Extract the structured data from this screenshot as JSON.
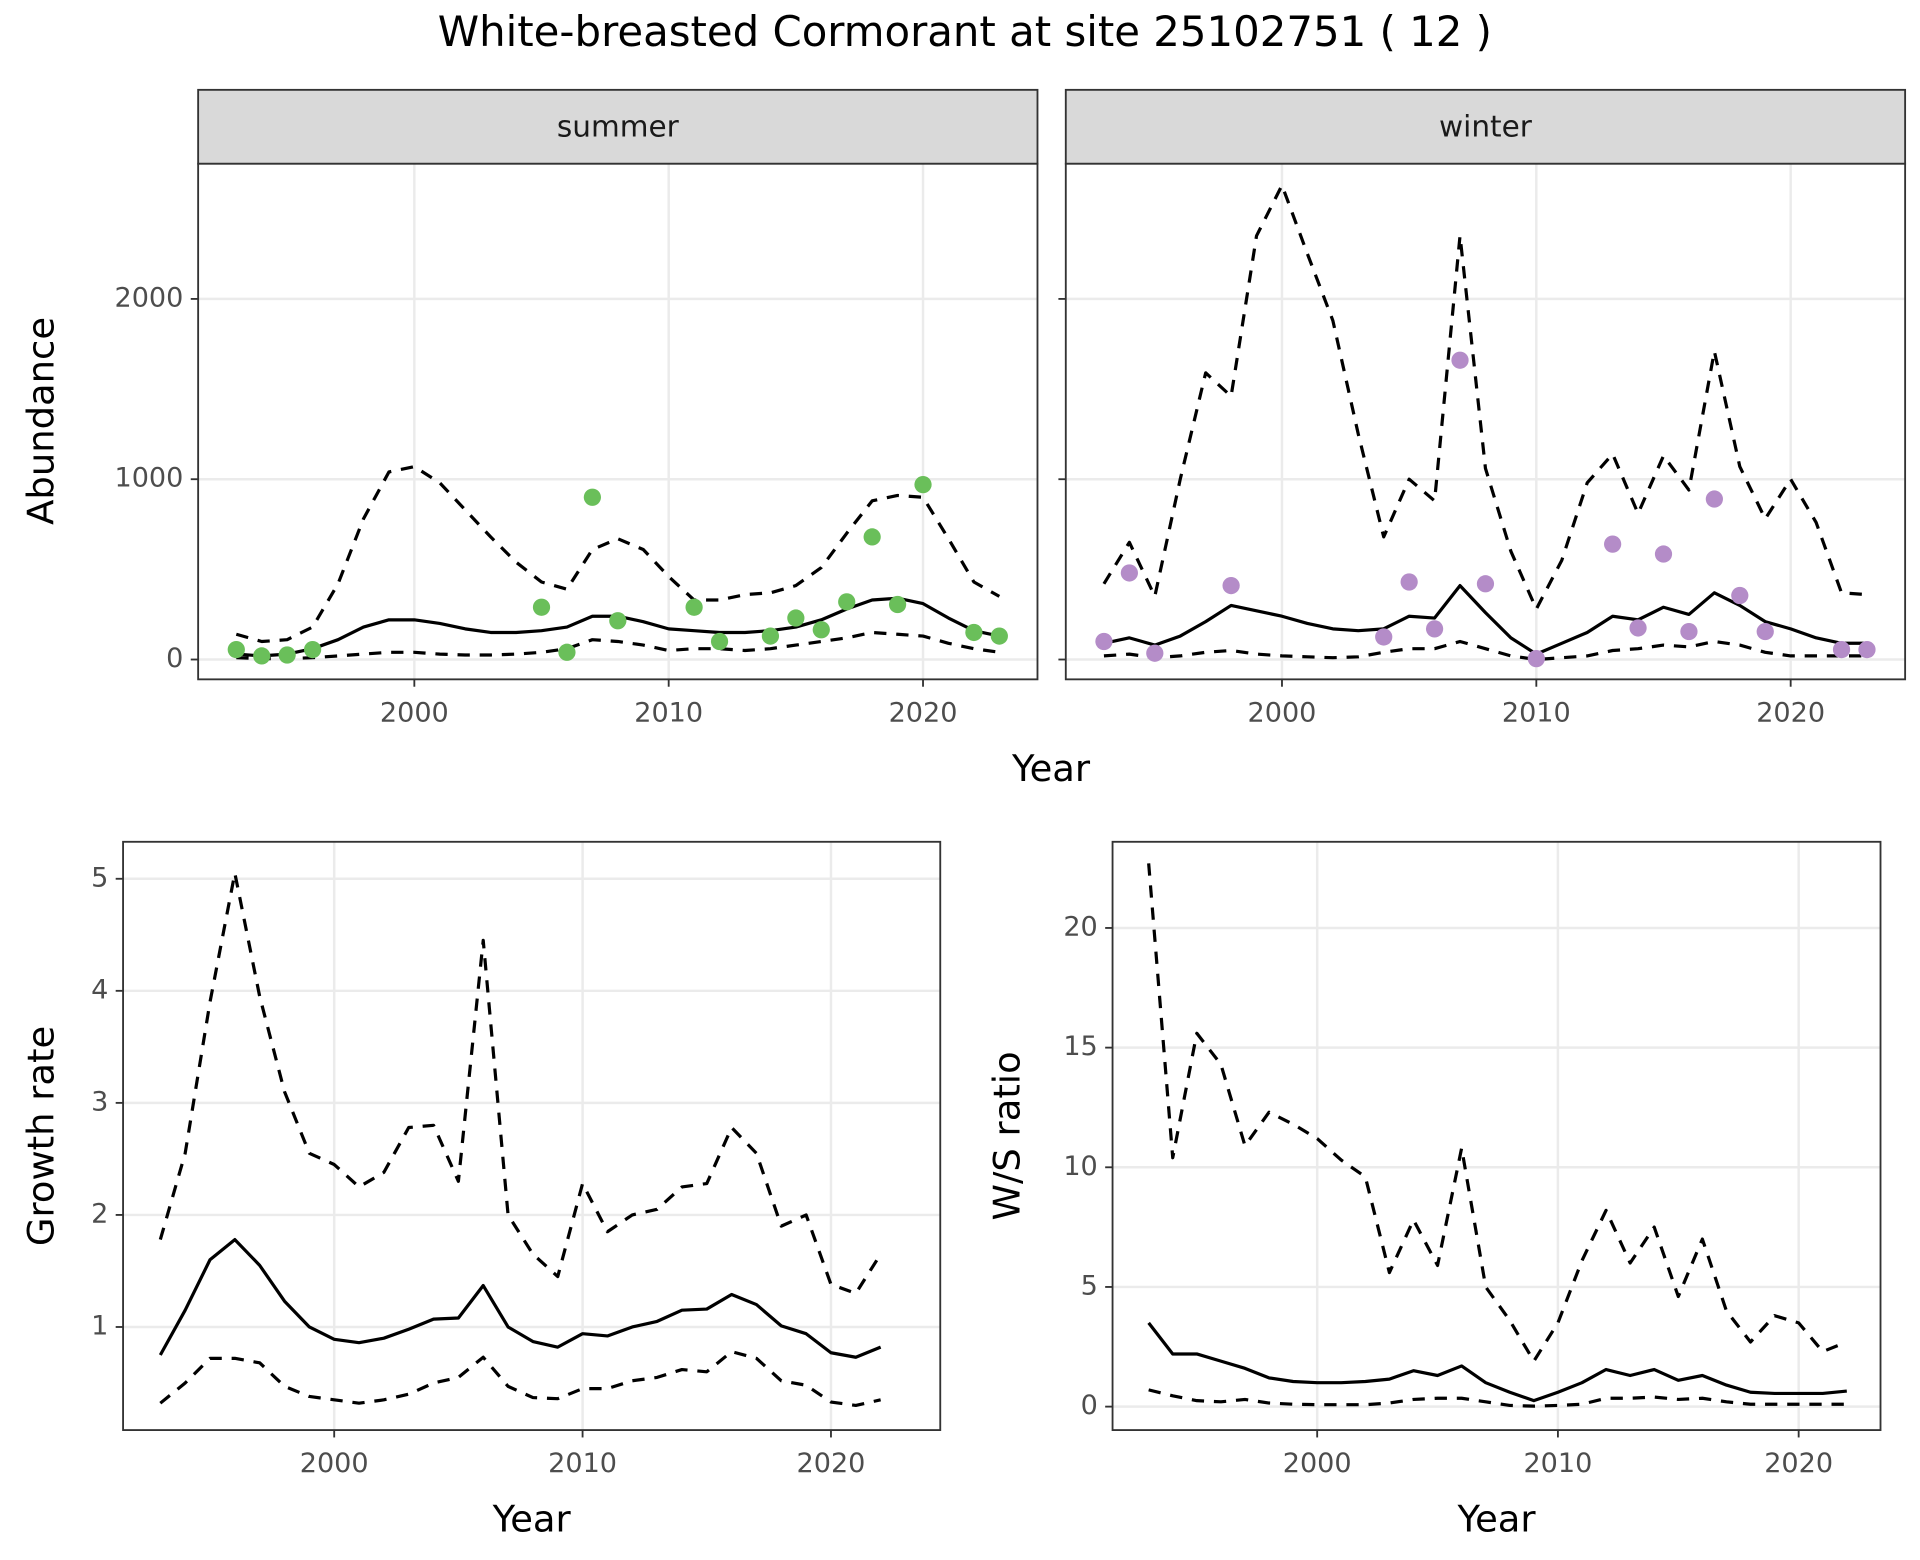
{
  "title": "White-breasted Cormorant at site 25102751 ( 12 )",
  "chart_data": [
    {
      "type": "line",
      "title": "summer",
      "xlabel": "Year",
      "ylabel": "Abundance",
      "xlim": [
        1991.5,
        2024.5
      ],
      "xticks": [
        2000,
        2010,
        2020
      ],
      "ylim": [
        -110,
        2750
      ],
      "yticks": [
        0,
        1000,
        2000
      ],
      "grid": true,
      "x": [
        1993,
        1994,
        1995,
        1996,
        1997,
        1998,
        1999,
        2000,
        2001,
        2002,
        2003,
        2004,
        2005,
        2006,
        2007,
        2008,
        2009,
        2010,
        2011,
        2012,
        2013,
        2014,
        2015,
        2016,
        2017,
        2018,
        2019,
        2020,
        2021,
        2022,
        2023
      ],
      "series": [
        {
          "style": "solid",
          "color": "#000000",
          "values": [
            30,
            20,
            30,
            60,
            110,
            180,
            220,
            220,
            200,
            170,
            150,
            150,
            160,
            180,
            240,
            240,
            210,
            170,
            160,
            150,
            150,
            160,
            180,
            220,
            280,
            330,
            340,
            310,
            230,
            160,
            130
          ]
        },
        {
          "style": "dashed",
          "color": "#000000",
          "values": [
            140,
            100,
            110,
            180,
            420,
            780,
            1040,
            1070,
            980,
            830,
            680,
            540,
            430,
            390,
            610,
            670,
            610,
            460,
            330,
            330,
            360,
            370,
            410,
            510,
            700,
            880,
            910,
            900,
            670,
            430,
            350
          ]
        },
        {
          "style": "dashed",
          "color": "#000000",
          "values": [
            10,
            5,
            5,
            10,
            20,
            30,
            40,
            40,
            30,
            25,
            25,
            30,
            40,
            60,
            110,
            100,
            80,
            50,
            60,
            60,
            50,
            60,
            80,
            100,
            120,
            150,
            140,
            130,
            90,
            60,
            40
          ]
        },
        {
          "style": "points",
          "color": "#6abf5a",
          "x": [
            1993,
            1994,
            1995,
            1996,
            2005,
            2006,
            2007,
            2008,
            2011,
            2012,
            2014,
            2015,
            2016,
            2017,
            2018,
            2019,
            2020,
            2022,
            2023
          ],
          "values": [
            55,
            20,
            25,
            55,
            290,
            40,
            900,
            215,
            290,
            100,
            130,
            230,
            165,
            320,
            680,
            305,
            970,
            150,
            130
          ]
        }
      ]
    },
    {
      "type": "line",
      "title": "winter",
      "xlim": [
        1991.5,
        2024.5
      ],
      "xticks": [
        2000,
        2010,
        2020
      ],
      "ylim": [
        -110,
        2750
      ],
      "yticks": [
        0,
        1000,
        2000
      ],
      "grid": true,
      "x": [
        1993,
        1994,
        1995,
        1996,
        1997,
        1998,
        1999,
        2000,
        2001,
        2002,
        2003,
        2004,
        2005,
        2006,
        2007,
        2008,
        2009,
        2010,
        2011,
        2012,
        2013,
        2014,
        2015,
        2016,
        2017,
        2018,
        2019,
        2020,
        2021,
        2022,
        2023
      ],
      "series": [
        {
          "style": "solid",
          "color": "#000000",
          "values": [
            90,
            120,
            80,
            130,
            210,
            300,
            270,
            240,
            200,
            170,
            160,
            170,
            240,
            230,
            410,
            260,
            120,
            30,
            90,
            150,
            240,
            220,
            290,
            250,
            370,
            300,
            210,
            170,
            120,
            90,
            90
          ]
        },
        {
          "style": "dashed",
          "color": "#000000",
          "values": [
            420,
            650,
            350,
            1000,
            1590,
            1460,
            2350,
            2630,
            2250,
            1880,
            1250,
            680,
            1000,
            880,
            2350,
            1060,
            600,
            280,
            550,
            980,
            1140,
            810,
            1130,
            940,
            1710,
            1070,
            780,
            1000,
            760,
            370,
            360
          ]
        },
        {
          "style": "dashed",
          "color": "#000000",
          "values": [
            20,
            30,
            10,
            20,
            40,
            50,
            30,
            20,
            15,
            10,
            15,
            40,
            60,
            60,
            100,
            60,
            20,
            0,
            10,
            20,
            50,
            60,
            80,
            70,
            100,
            80,
            40,
            20,
            20,
            20,
            20
          ]
        },
        {
          "style": "points",
          "color": "#b48cc8",
          "x": [
            1993,
            1994,
            1995,
            1998,
            2004,
            2005,
            2006,
            2007,
            2008,
            2010,
            2013,
            2014,
            2015,
            2016,
            2017,
            2018,
            2019,
            2022,
            2023
          ],
          "values": [
            100,
            480,
            35,
            410,
            125,
            430,
            170,
            1660,
            420,
            5,
            640,
            175,
            585,
            155,
            890,
            355,
            155,
            55,
            55
          ]
        }
      ]
    },
    {
      "type": "line",
      "xlabel": "Year",
      "ylabel": "Growth rate",
      "xlim": [
        1991.5,
        2024.4
      ],
      "xticks": [
        2000,
        2010,
        2020
      ],
      "ylim": [
        0.08,
        5.33
      ],
      "yticks": [
        1,
        2,
        3,
        4,
        5
      ],
      "grid": true,
      "x": [
        1993,
        1994,
        1995,
        1996,
        1997,
        1998,
        1999,
        2000,
        2001,
        2002,
        2003,
        2004,
        2005,
        2006,
        2007,
        2008,
        2009,
        2010,
        2011,
        2012,
        2013,
        2014,
        2015,
        2016,
        2017,
        2018,
        2019,
        2020,
        2021,
        2022
      ],
      "series": [
        {
          "style": "solid",
          "color": "#000000",
          "values": [
            0.75,
            1.15,
            1.6,
            1.78,
            1.55,
            1.23,
            1.0,
            0.89,
            0.86,
            0.9,
            0.98,
            1.07,
            1.08,
            1.37,
            1.0,
            0.87,
            0.82,
            0.94,
            0.92,
            1.0,
            1.05,
            1.15,
            1.16,
            1.29,
            1.2,
            1.01,
            0.94,
            0.77,
            0.73,
            0.82
          ]
        },
        {
          "style": "dashed",
          "color": "#000000",
          "values": [
            1.78,
            2.55,
            3.9,
            5.05,
            3.95,
            3.1,
            2.55,
            2.45,
            2.25,
            2.38,
            2.78,
            2.8,
            2.3,
            4.45,
            2.0,
            1.65,
            1.45,
            2.28,
            1.85,
            2.0,
            2.05,
            2.25,
            2.28,
            2.78,
            2.55,
            1.9,
            2.0,
            1.38,
            1.3,
            1.65
          ]
        },
        {
          "style": "dashed",
          "color": "#000000",
          "values": [
            0.32,
            0.5,
            0.72,
            0.72,
            0.68,
            0.47,
            0.38,
            0.35,
            0.32,
            0.35,
            0.4,
            0.5,
            0.55,
            0.73,
            0.47,
            0.37,
            0.36,
            0.45,
            0.45,
            0.52,
            0.55,
            0.62,
            0.6,
            0.78,
            0.72,
            0.52,
            0.48,
            0.33,
            0.3,
            0.35
          ]
        }
      ]
    },
    {
      "type": "line",
      "xlabel": "Year",
      "ylabel": "W/S ratio",
      "xlim": [
        1991.5,
        2023.4
      ],
      "xticks": [
        2000,
        2010,
        2020
      ],
      "ylim": [
        -0.98,
        23.6
      ],
      "yticks": [
        0,
        5,
        10,
        15,
        20
      ],
      "grid": true,
      "x": [
        1993,
        1994,
        1995,
        1996,
        1997,
        1998,
        1999,
        2000,
        2001,
        2002,
        2003,
        2004,
        2005,
        2006,
        2007,
        2008,
        2009,
        2010,
        2011,
        2012,
        2013,
        2014,
        2015,
        2016,
        2017,
        2018,
        2019,
        2020,
        2021,
        2022
      ],
      "series": [
        {
          "style": "solid",
          "color": "#000000",
          "values": [
            3.5,
            2.2,
            2.2,
            1.9,
            1.6,
            1.2,
            1.05,
            1.0,
            1.0,
            1.05,
            1.15,
            1.5,
            1.3,
            1.7,
            1.0,
            0.6,
            0.25,
            0.6,
            1.0,
            1.55,
            1.3,
            1.55,
            1.1,
            1.3,
            0.9,
            0.6,
            0.55,
            0.55,
            0.55,
            0.65
          ]
        },
        {
          "style": "dashed",
          "color": "#000000",
          "values": [
            22.7,
            10.4,
            15.6,
            14.3,
            10.9,
            12.3,
            11.8,
            11.2,
            10.3,
            9.6,
            5.6,
            7.8,
            5.9,
            10.8,
            5.0,
            3.6,
            1.9,
            3.5,
            6.1,
            8.2,
            6.0,
            7.5,
            4.6,
            7.0,
            4.0,
            2.7,
            3.8,
            3.5,
            2.3,
            2.7
          ]
        },
        {
          "style": "dashed",
          "color": "#000000",
          "values": [
            0.7,
            0.45,
            0.25,
            0.2,
            0.3,
            0.15,
            0.1,
            0.08,
            0.08,
            0.08,
            0.15,
            0.3,
            0.35,
            0.35,
            0.2,
            0.05,
            0.02,
            0.05,
            0.1,
            0.35,
            0.35,
            0.4,
            0.3,
            0.35,
            0.2,
            0.1,
            0.1,
            0.1,
            0.1,
            0.1
          ]
        }
      ]
    }
  ]
}
